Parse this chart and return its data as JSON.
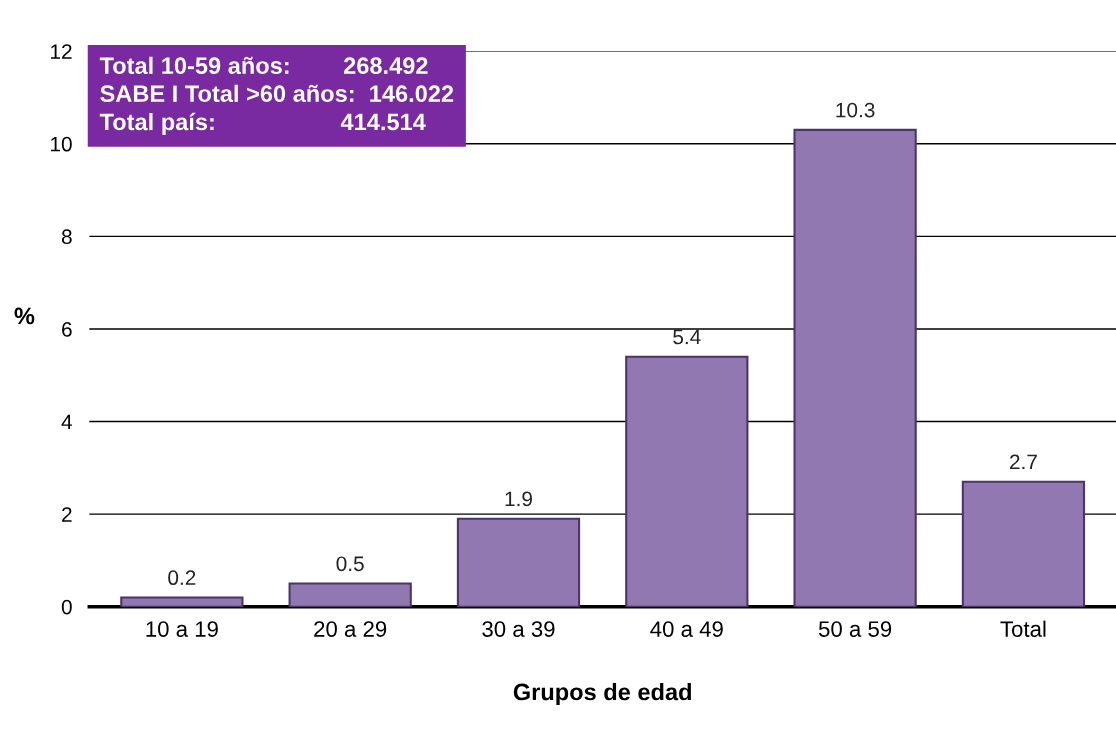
{
  "chart_data": {
    "type": "bar",
    "categories": [
      "10 a 19",
      "20 a 29",
      "30 a 39",
      "40 a 49",
      "50 a 59",
      "Total"
    ],
    "values": [
      0.2,
      0.5,
      1.9,
      5.4,
      10.3,
      2.7
    ],
    "color": "#9178b0",
    "ylim": [
      0,
      12
    ],
    "yticks": [
      0,
      2,
      4,
      6,
      8,
      10,
      12
    ],
    "grid": "y",
    "data_labels": true,
    "xlabel": "Grupos de edad",
    "ylabel": "%",
    "annotations": [
      "Total 10-59 años:        268.492",
      "SABE I Total >60 años:  146.022",
      "Total país:                   414.514"
    ]
  }
}
